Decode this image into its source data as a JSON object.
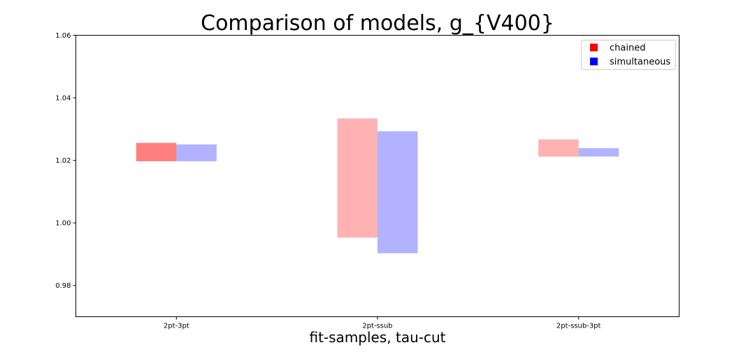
{
  "chart_data": {
    "type": "bar",
    "title": "Comparison of models, g_{V400}",
    "xlabel": "fit-samples, tau-cut",
    "ylabel": "",
    "ylim": [
      0.97,
      1.06
    ],
    "yticks": [
      "0.98",
      "1.00",
      "1.02",
      "1.04",
      "1.06"
    ],
    "categories": [
      "2pt-3pt",
      "2pt-ssub",
      "2pt-ssub-3pt"
    ],
    "legend_position": "top-right",
    "grid": false,
    "series": [
      {
        "name": "chained",
        "legend_color": "#ff0000",
        "ranges": [
          [
            1.0197,
            1.0256
          ],
          [
            0.9953,
            1.0334
          ],
          [
            1.0212,
            1.0267
          ]
        ],
        "alphas": [
          0.5,
          0.3,
          0.3
        ]
      },
      {
        "name": "simultaneous",
        "legend_color": "#0000ff",
        "ranges": [
          [
            1.0197,
            1.0251
          ],
          [
            0.9903,
            1.0293
          ],
          [
            1.0212,
            1.0239
          ]
        ],
        "alphas": [
          0.3,
          0.3,
          0.3
        ]
      }
    ]
  }
}
